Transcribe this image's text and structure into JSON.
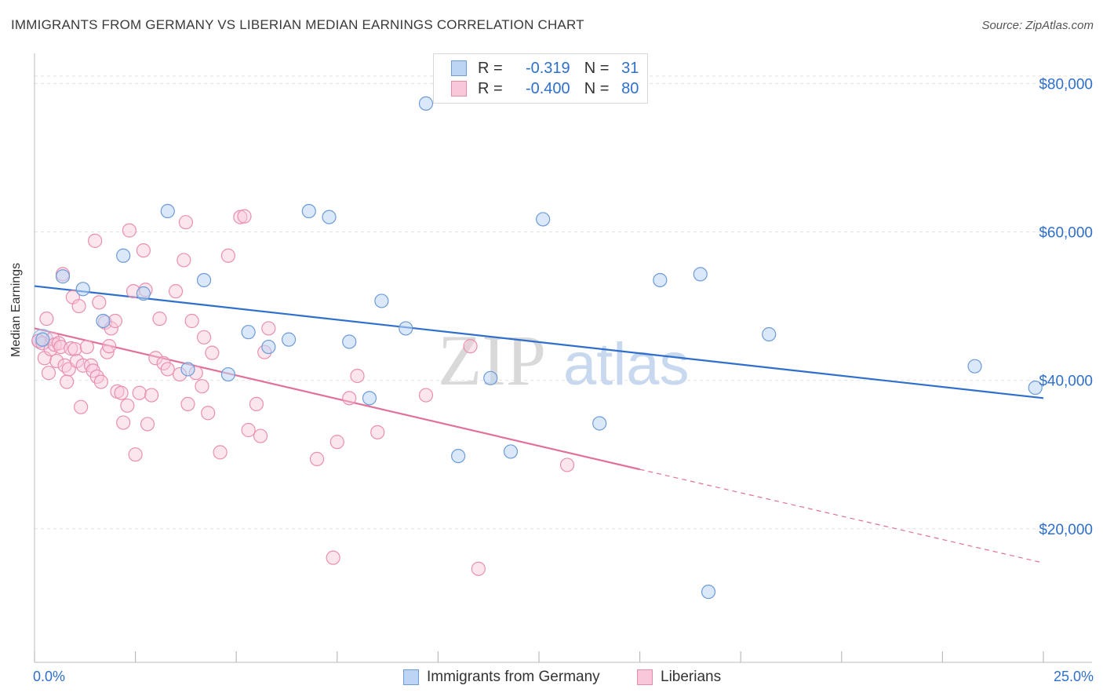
{
  "title": "IMMIGRANTS FROM GERMANY VS LIBERIAN MEDIAN EARNINGS CORRELATION CHART",
  "source": "Source: ZipAtlas.com",
  "watermark": {
    "zip": "ZIP",
    "atlas": "atlas"
  },
  "legend": {
    "r_label": "R =",
    "n_label": "N =",
    "series": [
      {
        "r": "-0.319",
        "n": "31"
      },
      {
        "r": "-0.400",
        "n": "80"
      }
    ]
  },
  "x_axis": {
    "min_label": "0.0%",
    "max_label": "25.0%"
  },
  "colors": {
    "blue": "#2f6fcc",
    "pink": "#e0719b",
    "blue_fill": "#bcd5f4",
    "pink_fill": "#f8c8da"
  },
  "chart_data": {
    "type": "scatter",
    "title": "IMMIGRANTS FROM GERMANY VS LIBERIAN MEDIAN EARNINGS CORRELATION CHART",
    "xlabel": "",
    "ylabel": "Median Earnings",
    "xlim": [
      0,
      25
    ],
    "ylim": [
      2000,
      83000
    ],
    "y_ticks": [
      20000,
      40000,
      60000,
      80000
    ],
    "y_tick_labels": [
      "$20,000",
      "$40,000",
      "$60,000",
      "$80,000"
    ],
    "series": [
      {
        "name": "Immigrants from Germany",
        "r": -0.319,
        "n": 31,
        "points": [
          [
            0.2,
            45.5
          ],
          [
            0.7,
            54
          ],
          [
            1.2,
            52.3
          ],
          [
            1.7,
            48
          ],
          [
            2.2,
            56.8
          ],
          [
            2.7,
            51.7
          ],
          [
            3.3,
            62.8
          ],
          [
            3.8,
            41.5
          ],
          [
            4.2,
            53.5
          ],
          [
            4.8,
            40.8
          ],
          [
            5.3,
            46.5
          ],
          [
            5.8,
            44.5
          ],
          [
            6.3,
            45.5
          ],
          [
            6.8,
            62.8
          ],
          [
            7.3,
            62
          ],
          [
            7.8,
            45.2
          ],
          [
            8.3,
            37.6
          ],
          [
            8.6,
            50.7
          ],
          [
            9.2,
            47
          ],
          [
            9.7,
            77.3
          ],
          [
            10.5,
            29.8
          ],
          [
            11.3,
            40.3
          ],
          [
            11.8,
            30.4
          ],
          [
            12.6,
            61.7
          ],
          [
            14.0,
            34.2
          ],
          [
            15.5,
            53.5
          ],
          [
            16.5,
            54.3
          ],
          [
            16.7,
            11.5
          ],
          [
            18.2,
            46.2
          ],
          [
            23.3,
            41.9
          ],
          [
            24.8,
            39
          ]
        ],
        "trend": {
          "x0": 0,
          "y0": 52.7,
          "x1": 25,
          "y1": 37.6
        }
      },
      {
        "name": "Liberians",
        "r": -0.4,
        "n": 80,
        "points": [
          [
            0.1,
            45.3
          ],
          [
            0.2,
            45
          ],
          [
            0.25,
            43
          ],
          [
            0.3,
            48.3
          ],
          [
            0.35,
            41
          ],
          [
            0.4,
            44.2
          ],
          [
            0.45,
            45.6
          ],
          [
            0.5,
            44.8
          ],
          [
            0.55,
            42.6
          ],
          [
            0.6,
            45
          ],
          [
            0.65,
            44.5
          ],
          [
            0.7,
            54.3
          ],
          [
            0.75,
            42
          ],
          [
            0.8,
            39.8
          ],
          [
            0.85,
            41.5
          ],
          [
            0.9,
            44.3
          ],
          [
            0.95,
            51.2
          ],
          [
            1.0,
            44.2
          ],
          [
            1.05,
            42.6
          ],
          [
            1.1,
            50
          ],
          [
            1.15,
            36.4
          ],
          [
            1.2,
            42
          ],
          [
            1.3,
            44.5
          ],
          [
            1.4,
            42
          ],
          [
            1.45,
            41.3
          ],
          [
            1.5,
            58.8
          ],
          [
            1.55,
            40.5
          ],
          [
            1.6,
            50.5
          ],
          [
            1.65,
            39.8
          ],
          [
            1.75,
            47.8
          ],
          [
            1.8,
            43.8
          ],
          [
            1.85,
            44.6
          ],
          [
            1.9,
            47
          ],
          [
            2.0,
            48
          ],
          [
            2.05,
            38.5
          ],
          [
            2.15,
            38.3
          ],
          [
            2.2,
            34.3
          ],
          [
            2.3,
            36.6
          ],
          [
            2.35,
            60.2
          ],
          [
            2.45,
            52
          ],
          [
            2.5,
            30
          ],
          [
            2.6,
            38.3
          ],
          [
            2.7,
            57.5
          ],
          [
            2.75,
            52.2
          ],
          [
            2.8,
            34.1
          ],
          [
            2.9,
            38
          ],
          [
            3.0,
            43
          ],
          [
            3.1,
            48.3
          ],
          [
            3.2,
            42.3
          ],
          [
            3.3,
            41.5
          ],
          [
            3.5,
            52
          ],
          [
            3.6,
            40.8
          ],
          [
            3.7,
            56.2
          ],
          [
            3.75,
            61.3
          ],
          [
            3.8,
            36.8
          ],
          [
            3.9,
            48
          ],
          [
            4.0,
            41
          ],
          [
            4.15,
            39.2
          ],
          [
            4.2,
            45.8
          ],
          [
            4.3,
            35.6
          ],
          [
            4.4,
            43.7
          ],
          [
            4.6,
            30.3
          ],
          [
            4.8,
            56.8
          ],
          [
            5.1,
            62
          ],
          [
            5.2,
            62.1
          ],
          [
            5.3,
            33.3
          ],
          [
            5.5,
            36.8
          ],
          [
            5.6,
            32.5
          ],
          [
            5.7,
            43.8
          ],
          [
            5.8,
            47
          ],
          [
            7.0,
            29.4
          ],
          [
            7.4,
            16.1
          ],
          [
            7.5,
            31.7
          ],
          [
            7.8,
            37.6
          ],
          [
            8.0,
            40.6
          ],
          [
            8.5,
            33
          ],
          [
            9.7,
            38
          ],
          [
            10.8,
            44.6
          ],
          [
            11.0,
            14.6
          ],
          [
            13.2,
            28.6
          ]
        ],
        "trend": {
          "x0": 0,
          "y0": 47,
          "x1": 15,
          "y1": 28,
          "dashed_to_x": 25,
          "dashed_to_y": 15.4
        }
      }
    ]
  }
}
